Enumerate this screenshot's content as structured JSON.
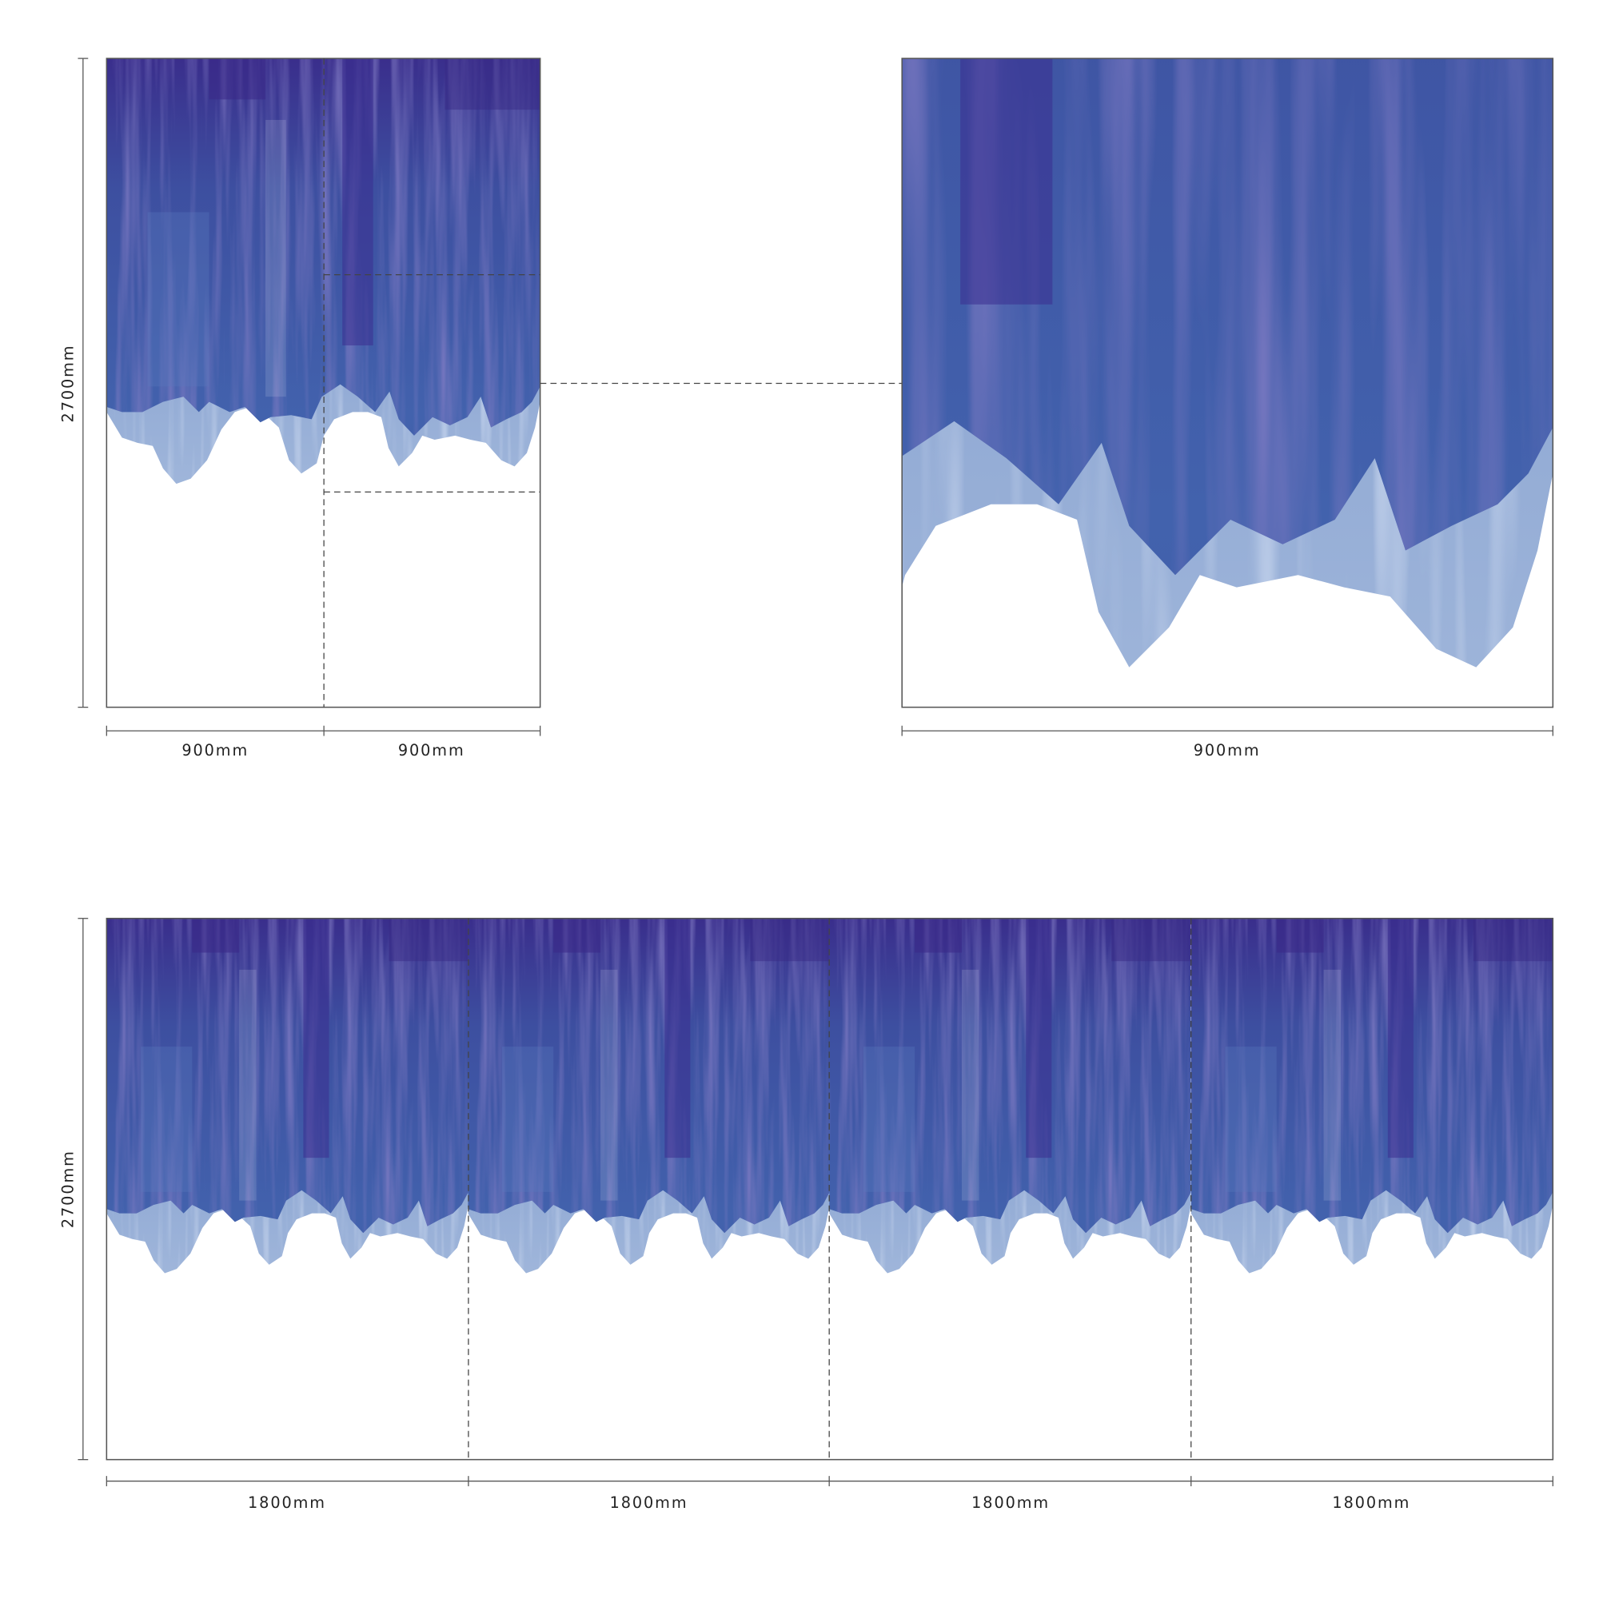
{
  "top_left": {
    "height_label": "2700mm",
    "width_labels": [
      "900mm",
      "900mm"
    ]
  },
  "top_right": {
    "width_label": "900mm"
  },
  "bottom": {
    "height_label": "2700mm",
    "width_labels": [
      "1800mm",
      "1800mm",
      "1800mm",
      "1800mm"
    ]
  }
}
